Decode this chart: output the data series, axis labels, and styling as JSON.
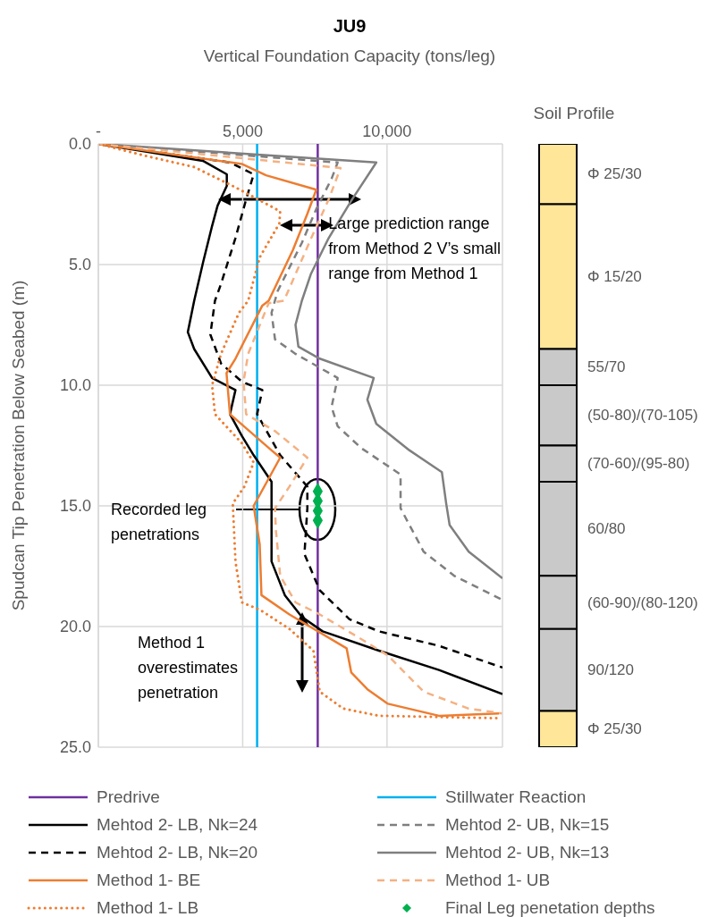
{
  "chart_data": [
    {
      "type": "line",
      "title": "JU9",
      "xlabel": "Vertical Foundation Capacity (tons/leg)",
      "ylabel": "Spudcan Tip Penetration Below Seabed (m)",
      "xlim": [
        0,
        14000
      ],
      "xticks": [
        {
          "value": 0,
          "label": "-"
        },
        {
          "value": 5000,
          "label": "5,000"
        },
        {
          "value": 10000,
          "label": "10,000"
        }
      ],
      "ylim": [
        25,
        0
      ],
      "yticks": [
        {
          "value": 0,
          "label": "0.0"
        },
        {
          "value": 5,
          "label": "5.0"
        },
        {
          "value": 10,
          "label": "10.0"
        },
        {
          "value": 15,
          "label": "15.0"
        },
        {
          "value": 20,
          "label": "20.0"
        },
        {
          "value": 25,
          "label": "25.0"
        }
      ],
      "grid": true,
      "legend": "bottom",
      "series": [
        {
          "name": "Predrive",
          "color": "#7030a0",
          "line_style": "solid",
          "x": [
            7600,
            7600
          ],
          "values": [
            0,
            25
          ]
        },
        {
          "name": "Stillwater Reaction",
          "color": "#00b0f0",
          "line_style": "solid",
          "x": [
            5500,
            5500
          ],
          "values": [
            0,
            25
          ]
        },
        {
          "name": "Mehtod 2- LB,  Nk=24",
          "color": "#000000",
          "line_style": "solid",
          "x": [
            0,
            3620,
            4450,
            4450,
            4130,
            3940,
            3630,
            3320,
            3100,
            3320,
            3940,
            4750,
            4560,
            4970,
            5380,
            6000,
            6000,
            6000,
            6460,
            7050,
            7770,
            9720,
            11800,
            14000
          ],
          "values": [
            0,
            0.7,
            1.26,
            1.74,
            2.56,
            3.4,
            4.9,
            6.5,
            7.8,
            8.5,
            9.7,
            10.2,
            11.2,
            12.1,
            12.9,
            14.0,
            15.0,
            17.3,
            18.7,
            19.6,
            20.2,
            21.0,
            21.8,
            22.8
          ]
        },
        {
          "name": "Mehtod 2- UB, Nk=15",
          "color": "#7f7f7f",
          "line_style": "dashed",
          "x": [
            0,
            8290,
            8080,
            7550,
            7050,
            6210,
            6000,
            6120,
            6830,
            8290,
            8080,
            8290,
            9100,
            10470,
            10470,
            11270,
            12330,
            14000
          ],
          "values": [
            0,
            0.77,
            1.44,
            2.7,
            4.1,
            6.1,
            7.0,
            8.1,
            8.7,
            9.7,
            10.9,
            11.7,
            12.6,
            13.7,
            15.1,
            16.9,
            17.9,
            18.9
          ]
        },
        {
          "name": "Mehtod 2- LB, Nk=20",
          "color": "#000000",
          "line_style": "dashed",
          "x": [
            0,
            4560,
            5380,
            5120,
            4750,
            4250,
            4040,
            3880,
            4250,
            4970,
            5680,
            5500,
            6300,
            7240,
            7240,
            7140,
            7670,
            8700,
            9720,
            11800,
            14000
          ],
          "values": [
            0,
            0.77,
            1.26,
            2.3,
            3.9,
            5.8,
            6.5,
            7.9,
            9.1,
            9.85,
            10.2,
            11.2,
            12.9,
            14.2,
            15.1,
            17.0,
            18.5,
            19.7,
            20.2,
            20.8,
            21.7
          ]
        },
        {
          "name": "Mehtod 2- UB, Nk=13",
          "color": "#7f7f7f",
          "line_style": "solid",
          "x": [
            0,
            9630,
            8790,
            7980,
            7360,
            7050,
            6830,
            6930,
            7670,
            9540,
            9320,
            9630,
            10780,
            11900,
            12050,
            12170,
            12830,
            14000
          ],
          "values": [
            0,
            0.77,
            2.3,
            3.9,
            5.4,
            6.5,
            7.5,
            8.4,
            8.9,
            9.7,
            10.6,
            11.6,
            12.7,
            13.6,
            14.9,
            15.8,
            16.9,
            18.0
          ]
        },
        {
          "name": "Method 1- BE",
          "color": "#ed7d31",
          "line_style": "solid",
          "x": [
            0,
            4970,
            5810,
            7550,
            7240,
            6740,
            5900,
            5680,
            4750,
            4440,
            4560,
            6000,
            6300,
            5380,
            5590,
            5650,
            6620,
            8600,
            8760,
            9320,
            10030,
            11800,
            13880
          ],
          "values": [
            0,
            0.83,
            1.3,
            1.9,
            2.9,
            4.4,
            6.5,
            6.7,
            8.9,
            9.5,
            11.2,
            12.7,
            13.0,
            15.0,
            16.6,
            18.7,
            19.5,
            20.9,
            21.9,
            22.6,
            23.2,
            23.7,
            23.6
          ]
        },
        {
          "name": "Method 1- UB",
          "color": "#f4b183",
          "line_style": "dashed",
          "x": [
            0,
            8390,
            7980,
            7450,
            6830,
            6430,
            5900,
            5190,
            5030,
            5120,
            6120,
            7240,
            6620,
            6120,
            6150,
            6300,
            6830,
            7670,
            9220,
            10030,
            11270,
            12830,
            13980
          ],
          "values": [
            0,
            1.0,
            2.3,
            3.7,
            5.4,
            6.5,
            6.6,
            8.7,
            9.85,
            11.2,
            11.9,
            13.0,
            14.2,
            15.1,
            16.0,
            17.9,
            19.0,
            19.5,
            20.6,
            21.2,
            22.7,
            23.4,
            23.6
          ]
        },
        {
          "name": "Method 1- LB",
          "color": "#ed7d31",
          "line_style": "dotted",
          "x": [
            0,
            1650,
            3320,
            4750,
            6000,
            6300,
            6270,
            5590,
            5190,
            4870,
            4250,
            3940,
            4040,
            4970,
            5380,
            5060,
            4660,
            4660,
            4750,
            4970,
            5590,
            6620,
            7450,
            7670,
            8480,
            9720,
            13880
          ],
          "values": [
            0,
            0.5,
            0.96,
            1.8,
            2.6,
            2.8,
            3.3,
            4.7,
            6.5,
            7.0,
            8.7,
            10.0,
            11.2,
            12.4,
            13.2,
            14.2,
            14.9,
            15.0,
            17.3,
            19.0,
            19.3,
            20.1,
            21.0,
            22.7,
            23.4,
            23.7,
            23.8
          ]
        },
        {
          "name": "Final Leg penetation depths",
          "color": "#00b050",
          "type": "scatter",
          "marker": "diamond",
          "x": [
            7600,
            7600,
            7600,
            7600
          ],
          "values": [
            14.4,
            14.8,
            15.2,
            15.6
          ]
        }
      ],
      "annotations": [
        {
          "text": "Large prediction range from Method 2 V’s small range from Method 1",
          "x": 7600,
          "y": 3.4
        },
        "Recorded leg penetrations",
        "Method 1 overestimates penetration"
      ]
    },
    {
      "type": "bar",
      "stacked": true,
      "title": "Soil Profile",
      "categories": [
        null
      ],
      "ylim": [
        25,
        0
      ],
      "tick_labels": false,
      "series": [
        {
          "name": "Φ 25/30",
          "color": "#ffe699",
          "values": [
            2.5
          ]
        },
        {
          "name": "Φ 15/20",
          "color": "#ffe699",
          "values": [
            6.0
          ]
        },
        {
          "name": "55/70",
          "color": "#c9c9c9",
          "values": [
            1.5
          ]
        },
        {
          "name": "(50-80)/(70-105)",
          "color": "#c9c9c9",
          "values": [
            2.5
          ]
        },
        {
          "name": "(70-60)/(95-80)",
          "color": "#c9c9c9",
          "values": [
            1.5
          ]
        },
        {
          "name": "60/80",
          "color": "#c9c9c9",
          "values": [
            3.9
          ]
        },
        {
          "name": "(60-90)/(80-120)",
          "color": "#c9c9c9",
          "values": [
            2.2
          ]
        },
        {
          "name": "90/120",
          "color": "#c9c9c9",
          "values": [
            3.4
          ]
        },
        {
          "name": "Φ 25/30",
          "color": "#ffe699",
          "values": [
            1.5
          ]
        }
      ]
    }
  ]
}
